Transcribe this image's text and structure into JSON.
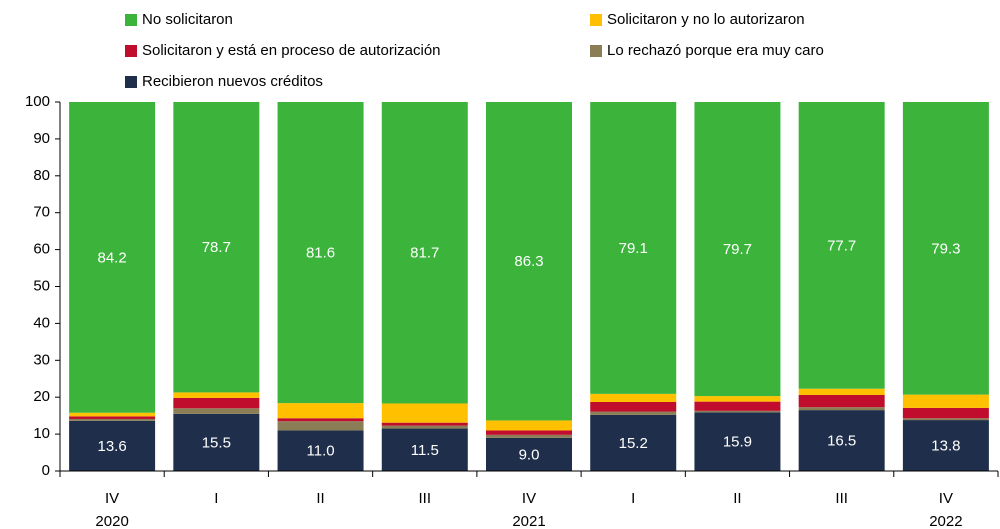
{
  "chart_data": {
    "type": "stacked-bar",
    "categories": [
      "IV",
      "I",
      "II",
      "III",
      "IV",
      "I",
      "II",
      "III",
      "IV"
    ],
    "years": [
      "2020",
      null,
      null,
      null,
      "2021",
      null,
      null,
      null,
      "2022"
    ],
    "series": [
      {
        "name": "No solicitaron",
        "color": "#3cb43c",
        "values": [
          84.2,
          78.7,
          81.6,
          81.7,
          86.3,
          79.1,
          79.7,
          77.7,
          79.3
        ],
        "value_labels": [
          "84.2",
          "78.7",
          "81.6",
          "81.7",
          "86.3",
          "79.1",
          "79.7",
          "77.7",
          "79.3"
        ]
      },
      {
        "name": "Solicitaron y no lo autorizaron",
        "color": "#ffc000",
        "values": [
          1.0,
          1.5,
          4.1,
          5.2,
          2.7,
          2.2,
          1.5,
          1.7,
          3.6
        ]
      },
      {
        "name": "Solicitaron y está en proceso de autorización",
        "color": "#c00d2d",
        "values": [
          0.7,
          2.8,
          0.8,
          0.8,
          1.2,
          2.6,
          2.5,
          3.3,
          2.8
        ]
      },
      {
        "name": "Lo rechazó porque era muy caro",
        "color": "#8b7d55",
        "values": [
          0.5,
          1.5,
          2.5,
          0.8,
          0.8,
          0.9,
          0.4,
          0.8,
          0.5
        ]
      },
      {
        "name": "Recibieron nuevos créditos",
        "color": "#1f2e4a",
        "values": [
          13.6,
          15.5,
          11.0,
          11.5,
          9.0,
          15.2,
          15.9,
          16.5,
          13.8
        ],
        "value_labels": [
          "13.6",
          "15.5",
          "11.0",
          "11.5",
          "9.0",
          "15.2",
          "15.9",
          "16.5",
          "13.8"
        ]
      }
    ],
    "ylim": [
      0,
      100
    ],
    "yticks": [
      0,
      10,
      20,
      30,
      40,
      50,
      60,
      70,
      80,
      90,
      100
    ]
  }
}
